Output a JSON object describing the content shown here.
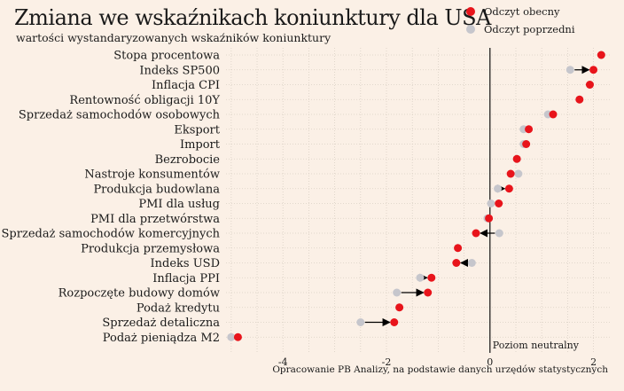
{
  "title": "Zmiana we wskaźnikach koniunktury dla USA",
  "subtitle": "wartości wystandaryzowanych wskaźników koniunktury",
  "source": "Opracowanie PB Analizy, na podstawie danych urzędów statystycznych",
  "colors": {
    "current": "#e8141b",
    "previous": "#c6c6cc",
    "background": "#fbf0e6"
  },
  "chart_data": {
    "type": "scatter",
    "subtype": "dumbbell",
    "title": "Zmiana we wskaźnikach koniunktury dla USA",
    "subtitle": "wartości wystandaryzowanych wskaźników koniunktury",
    "legend": [
      "Odczyt obecny",
      "Odczyt poprzedni"
    ],
    "legend_position": "top-right",
    "annotation": "Poziom neutralny",
    "xlim": [
      -5.1,
      2.35
    ],
    "xticks": [
      -4,
      -2,
      0,
      2
    ],
    "grid": true,
    "categories": [
      "Stopa procentowa",
      "Indeks SP500",
      "Inflacja CPI",
      "Rentowność obligacji 10Y",
      "Sprzedaż samochodów osobowych",
      "Eksport",
      "Import",
      "Bezrobocie",
      "Nastroje konsumentów",
      "Produkcja budowlana",
      "PMI dla usług",
      "PMI dla przetwórstwa",
      "Sprzedaż samochodów komercyjnych",
      "Produkcja przemysłowa",
      "Indeks USD",
      "Inflacja PPI",
      "Rozpoczęte budowy domów",
      "Podaż kredytu",
      "Sprzedaż detaliczna",
      "Podaż pieniądza M2"
    ],
    "series": [
      {
        "name": "Odczyt obecny",
        "values": [
          2.15,
          2.0,
          1.93,
          1.73,
          1.22,
          0.75,
          0.7,
          0.52,
          0.4,
          0.37,
          0.17,
          -0.02,
          -0.27,
          -0.62,
          -0.65,
          -1.13,
          -1.2,
          -1.75,
          -1.85,
          -4.87
        ]
      },
      {
        "name": "Odczyt poprzedni",
        "values": [
          2.15,
          1.55,
          1.93,
          1.73,
          1.12,
          0.65,
          0.65,
          0.52,
          0.55,
          0.15,
          0.02,
          -0.05,
          0.18,
          -0.62,
          -0.35,
          -1.35,
          -1.8,
          -1.75,
          -2.5,
          -5.0
        ]
      }
    ]
  }
}
